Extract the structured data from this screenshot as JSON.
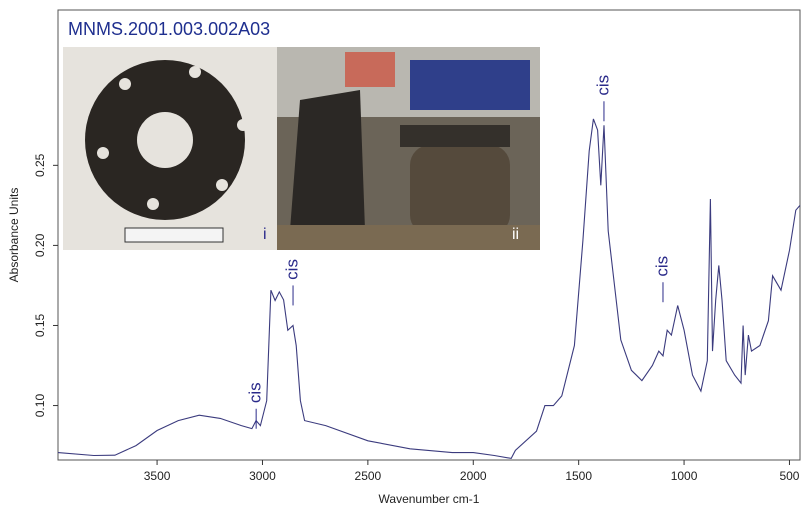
{
  "chart_data": {
    "type": "line",
    "title": "MNMS.2001.003.002A03",
    "x_label": "Wavenumber cm-1",
    "y_label": "Absorbance Units",
    "panel_labels": [
      "i",
      "ii"
    ],
    "xlim": [
      3970,
      450
    ],
    "ylim": [
      0.066,
      0.347
    ],
    "xticks": [
      3500,
      3000,
      2500,
      2000,
      1500,
      1000,
      500
    ],
    "yticks": [
      {
        "value": 0.1,
        "label": "0.10"
      },
      {
        "value": 0.15,
        "label": "0.15"
      },
      {
        "value": 0.2,
        "label": "0.20"
      },
      {
        "value": 0.25,
        "label": "0.25"
      }
    ],
    "series": [
      {
        "color": "#3b3b7e",
        "x": [
          3970,
          3800,
          3700,
          3600,
          3500,
          3400,
          3300,
          3200,
          3100,
          3050,
          3030,
          3010,
          2980,
          2960,
          2940,
          2920,
          2900,
          2880,
          2855,
          2840,
          2820,
          2800,
          2700,
          2500,
          2300,
          2100,
          2000,
          1900,
          1820,
          1800,
          1700,
          1660,
          1620,
          1580,
          1520,
          1480,
          1450,
          1430,
          1410,
          1395,
          1380,
          1360,
          1300,
          1250,
          1200,
          1150,
          1120,
          1100,
          1080,
          1060,
          1030,
          1000,
          960,
          920,
          890,
          875,
          865,
          850,
          835,
          820,
          800,
          760,
          730,
          720,
          710,
          695,
          680,
          640,
          600,
          580,
          540,
          500,
          470,
          450
        ],
        "values": [
          0.0706,
          0.0688,
          0.069,
          0.075,
          0.0844,
          0.0906,
          0.094,
          0.092,
          0.0875,
          0.0856,
          0.0906,
          0.0875,
          0.103,
          0.172,
          0.1656,
          0.171,
          0.166,
          0.147,
          0.15,
          0.1375,
          0.103,
          0.0906,
          0.0875,
          0.078,
          0.073,
          0.0706,
          0.0706,
          0.0688,
          0.067,
          0.072,
          0.084,
          0.1,
          0.1,
          0.106,
          0.1375,
          0.203,
          0.259,
          0.279,
          0.272,
          0.2375,
          0.275,
          0.209,
          0.141,
          0.122,
          0.1156,
          0.125,
          0.134,
          0.131,
          0.147,
          0.144,
          0.1625,
          0.147,
          0.119,
          0.109,
          0.128,
          0.229,
          0.134,
          0.166,
          0.1875,
          0.166,
          0.128,
          0.119,
          0.114,
          0.15,
          0.119,
          0.144,
          0.134,
          0.1375,
          0.153,
          0.181,
          0.172,
          0.197,
          0.222,
          0.225
        ]
      }
    ],
    "annotations": [
      {
        "text": "cis",
        "x": 3030,
        "y": 0.108
      },
      {
        "text": "cis",
        "x": 2855,
        "y": 0.185
      },
      {
        "text": "cis",
        "x": 1380,
        "y": 0.3
      },
      {
        "text": "cis",
        "x": 1100,
        "y": 0.187
      }
    ]
  }
}
